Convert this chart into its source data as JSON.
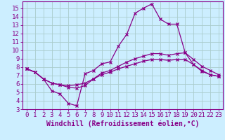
{
  "xlabel": "Windchill (Refroidissement éolien,°C)",
  "background_color": "#cceeff",
  "grid_color": "#aacccc",
  "line_color": "#880088",
  "spine_color": "#880088",
  "xlim": [
    -0.5,
    23.5
  ],
  "ylim": [
    3,
    15.8
  ],
  "xticks": [
    0,
    1,
    2,
    3,
    4,
    5,
    6,
    7,
    8,
    9,
    10,
    11,
    12,
    13,
    14,
    15,
    16,
    17,
    18,
    19,
    20,
    21,
    22,
    23
  ],
  "yticks": [
    3,
    4,
    5,
    6,
    7,
    8,
    9,
    10,
    11,
    12,
    13,
    14,
    15
  ],
  "tick_fontsize": 6.5,
  "xlabel_fontsize": 7,
  "series": [
    {
      "x": [
        0,
        1,
        2,
        3,
        4,
        5,
        6,
        7,
        8,
        9,
        10,
        11,
        12,
        13,
        14,
        15,
        16,
        17,
        18,
        19,
        20,
        21,
        22,
        23
      ],
      "y": [
        7.8,
        7.4,
        6.6,
        5.2,
        4.8,
        3.7,
        3.4,
        7.2,
        7.6,
        8.4,
        8.6,
        10.5,
        11.9,
        14.4,
        15.0,
        15.5,
        13.7,
        13.1,
        13.1,
        9.7,
        8.3,
        7.5,
        7.1,
        6.9
      ]
    },
    {
      "x": [
        0,
        1,
        2,
        3,
        4,
        5,
        6,
        7,
        8,
        9,
        10,
        11,
        12,
        13,
        14,
        15,
        16,
        17,
        18,
        19,
        20,
        21,
        22,
        23
      ],
      "y": [
        7.8,
        7.4,
        6.6,
        6.1,
        5.9,
        5.6,
        5.5,
        5.8,
        6.6,
        7.3,
        7.6,
        8.1,
        8.6,
        9.0,
        9.3,
        9.6,
        9.6,
        9.4,
        9.6,
        9.7,
        8.9,
        8.1,
        7.6,
        7.1
      ]
    },
    {
      "x": [
        0,
        1,
        2,
        3,
        4,
        5,
        6,
        7,
        8,
        9,
        10,
        11,
        12,
        13,
        14,
        15,
        16,
        17,
        18,
        19,
        20,
        21,
        22,
        23
      ],
      "y": [
        7.8,
        7.4,
        6.6,
        6.1,
        5.9,
        5.8,
        5.9,
        6.1,
        6.6,
        7.1,
        7.4,
        7.8,
        8.1,
        8.4,
        8.7,
        8.9,
        8.9,
        8.8,
        8.9,
        8.9,
        8.3,
        7.6,
        7.1,
        6.9
      ]
    }
  ]
}
